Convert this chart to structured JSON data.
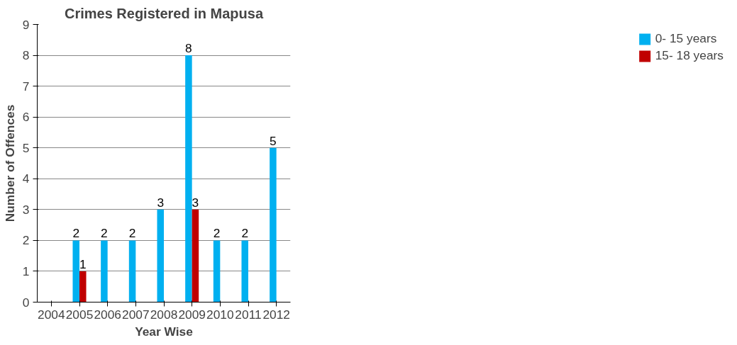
{
  "chart_data": {
    "type": "bar",
    "title": "Crimes Registered in Mapusa",
    "xlabel": "Year Wise",
    "ylabel": "Number of Offences",
    "categories": [
      "2004",
      "2005",
      "2006",
      "2007",
      "2008",
      "2009",
      "2010",
      "2011",
      "2012"
    ],
    "series": [
      {
        "name": "0- 15 years",
        "color": "#00b0f0",
        "values": [
          null,
          2,
          2,
          2,
          3,
          8,
          2,
          2,
          5
        ]
      },
      {
        "name": "15- 18 years",
        "color": "#c00000",
        "values": [
          null,
          1,
          null,
          null,
          null,
          3,
          null,
          null,
          null
        ]
      }
    ],
    "ylim": [
      0,
      9
    ],
    "yticks": [
      0,
      1,
      2,
      3,
      4,
      5,
      6,
      7,
      8,
      9
    ],
    "grid": "y",
    "legend": "right",
    "data_labels": true
  }
}
